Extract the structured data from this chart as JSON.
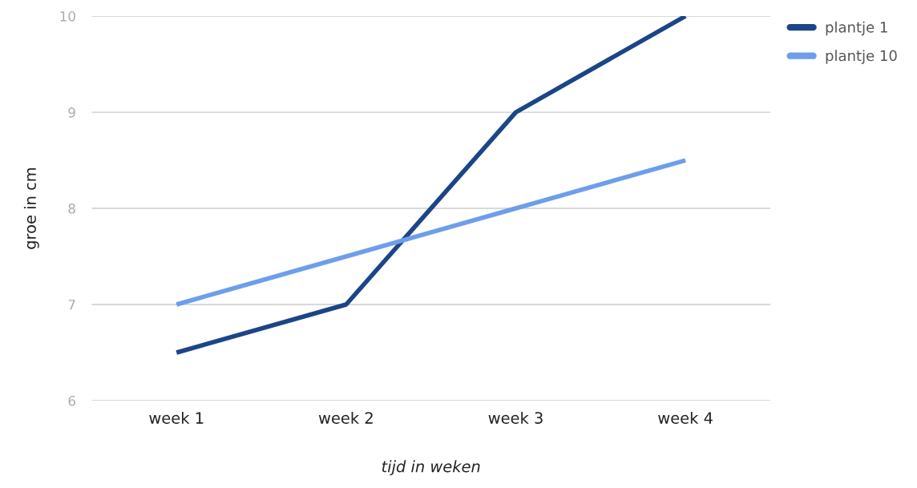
{
  "chart_data": {
    "type": "line",
    "xlabel": "tijd in weken",
    "ylabel": "groe in cm",
    "categories": [
      "week 1",
      "week 2",
      "week 3",
      "week 4"
    ],
    "series": [
      {
        "name": "plantje 1",
        "color": "#1c4587",
        "values": [
          6.5,
          7,
          9,
          10
        ]
      },
      {
        "name": "plantje 10",
        "color": "#6d9eeb",
        "values": [
          7,
          7.5,
          8,
          8.5
        ]
      }
    ],
    "ylim": [
      6,
      10
    ],
    "yticks": [
      6,
      7,
      8,
      9,
      10
    ],
    "grid": "y",
    "legend": "top right",
    "marker": "none",
    "line_style": "solid"
  }
}
